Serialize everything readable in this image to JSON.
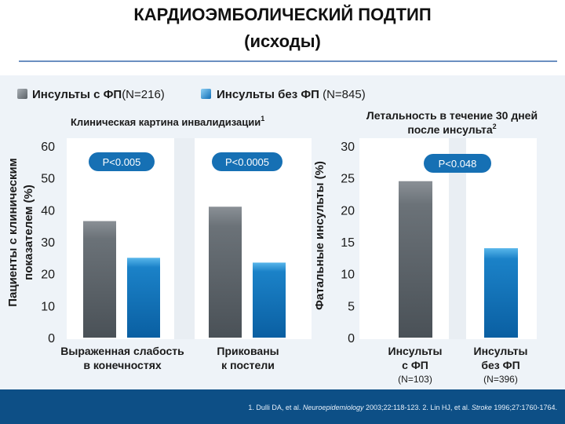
{
  "title": "КАРДИОЭМБОЛИЧЕСКИЙ ПОДТИП",
  "subtitle": "(исходы)",
  "legend": [
    {
      "label_bold": "Инсульты с ФП",
      "label_rest": "(N=216)",
      "color": "#6f7880"
    },
    {
      "label_bold": "Инсульты без ФП",
      "label_rest": " (N=845)",
      "color": "#1e86c8"
    }
  ],
  "chart_data": [
    {
      "type": "bar",
      "title": "Клиническая картина инвалидизации",
      "title_sup": "1",
      "ylabel_line1": "Пациенты с клиническим",
      "ylabel_line2": "показателем (%)",
      "ylim": [
        0,
        60
      ],
      "yticks": [
        "0",
        "10",
        "20",
        "30",
        "40",
        "50",
        "60"
      ],
      "categories": [
        {
          "line1": "Выраженная слабость",
          "line2": "в конечностях"
        },
        {
          "line1": "Прикованы",
          "line2": "к постели"
        }
      ],
      "series": [
        {
          "name": "Инсульты с ФП",
          "values": [
            36.5,
            41
          ]
        },
        {
          "name": "Инсульты без ФП",
          "values": [
            25,
            23.5
          ]
        }
      ],
      "p_values": [
        "P<0.005",
        "P<0.0005"
      ]
    },
    {
      "type": "bar",
      "title_line1": "Летальность в течение 30 дней",
      "title_line2": "после инсульта",
      "title_sup": "2",
      "ylabel": "Фатальные инсульты (%)",
      "ylim": [
        0,
        30
      ],
      "yticks": [
        "0",
        "5",
        "10",
        "15",
        "20",
        "25",
        "30"
      ],
      "categories": [
        {
          "line1": "Инсульты",
          "line2": "с ФП",
          "n": "(N=103)"
        },
        {
          "line1": "Инсульты",
          "line2": "без ФП",
          "n": "(N=396)"
        }
      ],
      "values": [
        24.5,
        14
      ],
      "p_value": "P<0.048"
    }
  ],
  "footnote": {
    "part1": "1. Dulli DA, et al. ",
    "journal1": "Neuroepidemiology",
    "part2": " 2003;22:118-123. 2. Lin HJ, et al. ",
    "journal2": "Stroke",
    "part3": " 1996;27:1760-1764."
  },
  "colors": {
    "panel_bg": "#eef3f8",
    "footer_bg": "#0d4f86",
    "gray_bar": "#5f666d",
    "blue_bar": "#0f6eb6",
    "pill": "#1670b4"
  }
}
